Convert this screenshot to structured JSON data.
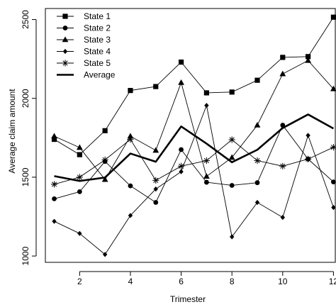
{
  "chart_data": {
    "type": "line",
    "title": "",
    "xlabel": "Trimester",
    "ylabel": "Average claim  amount",
    "x": [
      1,
      2,
      3,
      4,
      5,
      6,
      7,
      8,
      9,
      10,
      11,
      12
    ],
    "xlim": [
      0.65,
      12.1
    ],
    "ylim": [
      960,
      2570
    ],
    "xticks": [
      2,
      4,
      6,
      8,
      10,
      12
    ],
    "yticks": [
      1000,
      1500,
      2000,
      2500
    ],
    "legend_position": "top-left",
    "series": [
      {
        "name": "State 1",
        "marker": "square",
        "values": [
          1740,
          1643,
          1795,
          2050,
          2075,
          2230,
          2035,
          2040,
          2115,
          2260,
          2265,
          2515
        ]
      },
      {
        "name": "State 2",
        "marker": "circle",
        "values": [
          1363,
          1408,
          1600,
          1445,
          1340,
          1675,
          1468,
          1448,
          1465,
          1830,
          1615,
          1470
        ]
      },
      {
        "name": "State 3",
        "marker": "triangle",
        "values": [
          1760,
          1688,
          1485,
          1760,
          1670,
          2100,
          1505,
          1625,
          1830,
          2155,
          2240,
          2060
        ]
      },
      {
        "name": "State 4",
        "marker": "diamond",
        "values": [
          1220,
          1143,
          1010,
          1257,
          1425,
          1535,
          1955,
          1122,
          1340,
          1245,
          1765,
          1308
        ]
      },
      {
        "name": "State 5",
        "marker": "asterisk",
        "values": [
          1455,
          1500,
          1610,
          1740,
          1480,
          1570,
          1605,
          1738,
          1605,
          1570,
          1615,
          1690
        ]
      },
      {
        "name": "Average",
        "marker": "none",
        "bold": true,
        "values": [
          1507,
          1476,
          1498,
          1650,
          1598,
          1822,
          1713,
          1595,
          1674,
          1812,
          1898,
          1809
        ]
      }
    ]
  }
}
